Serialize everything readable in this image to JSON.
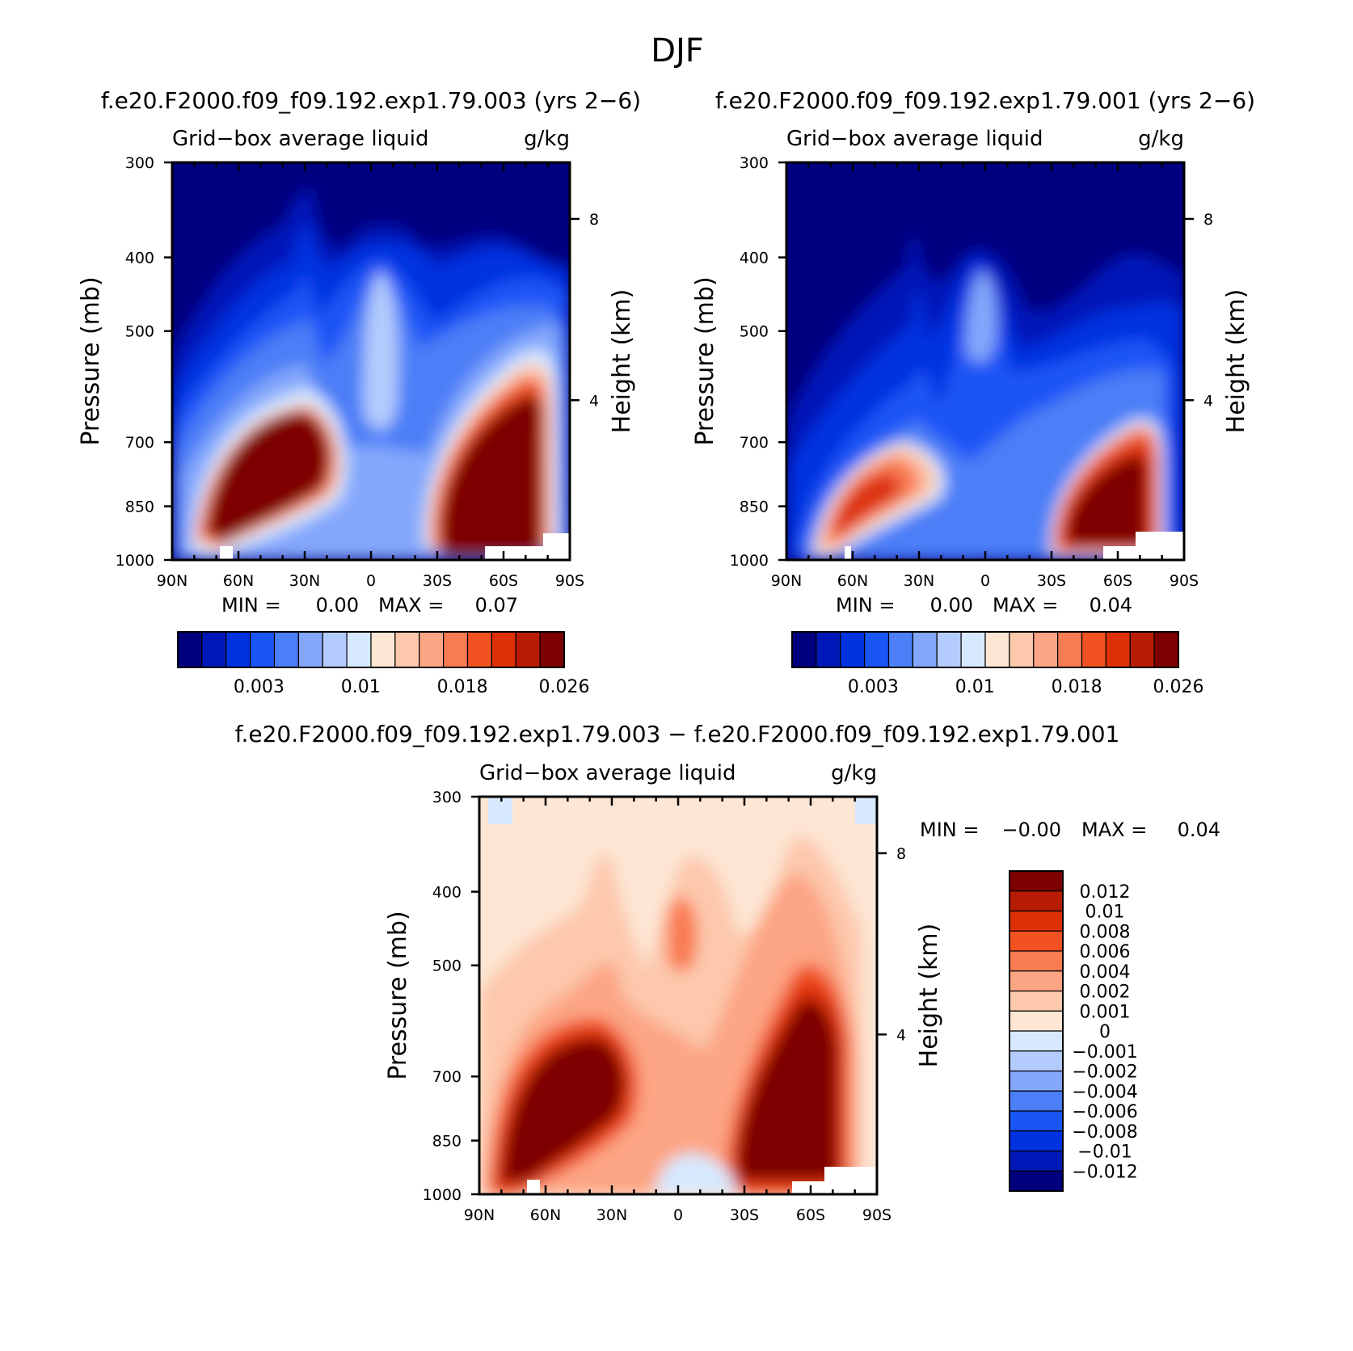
{
  "figure": {
    "title": "DJF"
  },
  "chart_data": [
    {
      "type": "heatmap",
      "title": "f.e20.F2000.f09_f09.192.exp1.79.003 (yrs 2−6)",
      "subtitle_left": "Grid−box average liquid",
      "subtitle_right": "g/kg",
      "xlabel": "",
      "ylabel": "Pressure (mb)",
      "y2label": "Height (km)",
      "x_ticks": [
        "90N",
        "60N",
        "30N",
        "0",
        "30S",
        "60S",
        "90S"
      ],
      "x_range": [
        90,
        -90
      ],
      "y_ticks": [
        300,
        400,
        500,
        700,
        850,
        1000
      ],
      "y_range": [
        300,
        1000
      ],
      "y2_ticks": [
        8,
        4
      ],
      "min_label": "MIN =",
      "min_value": "0.00",
      "max_label": "MAX =",
      "max_value": "0.07",
      "colorbar_orientation": "horizontal",
      "colorbar_ticks": [
        "0.003",
        "0.01",
        "0.018",
        "0.026"
      ],
      "colorbar_colors": [
        "#00007f",
        "#0018b8",
        "#0032e0",
        "#1a55f5",
        "#4b7ef7",
        "#84a7fb",
        "#b4ccfd",
        "#d7e9fe",
        "#fde6d4",
        "#fdc8ac",
        "#fca584",
        "#f97b52",
        "#f25221",
        "#dd3007",
        "#b81c04",
        "#7d0000"
      ],
      "features": [
        {
          "lat": 45,
          "p": 830,
          "value": 0.07
        },
        {
          "lat": -62,
          "p": 830,
          "value": 0.06
        },
        {
          "lat": 80,
          "p": 870,
          "value": 0.02
        },
        {
          "lat": 0,
          "p": 520,
          "value": 0.009
        },
        {
          "lat": 30,
          "p": 480,
          "value": 0.006
        }
      ]
    },
    {
      "type": "heatmap",
      "title": "f.e20.F2000.f09_f09.192.exp1.79.001 (yrs 2−6)",
      "subtitle_left": "Grid−box average liquid",
      "subtitle_right": "g/kg",
      "xlabel": "",
      "ylabel": "Pressure (mb)",
      "y2label": "Height (km)",
      "x_ticks": [
        "90N",
        "60N",
        "30N",
        "0",
        "30S",
        "60S",
        "90S"
      ],
      "x_range": [
        90,
        -90
      ],
      "y_ticks": [
        300,
        400,
        500,
        700,
        850,
        1000
      ],
      "y_range": [
        300,
        1000
      ],
      "y2_ticks": [
        8,
        4
      ],
      "min_label": "MIN =",
      "min_value": "0.00",
      "max_label": "MAX =",
      "max_value": "0.04",
      "colorbar_orientation": "horizontal",
      "colorbar_ticks": [
        "0.003",
        "0.01",
        "0.018",
        "0.026"
      ],
      "colorbar_colors": [
        "#00007f",
        "#0018b8",
        "#0032e0",
        "#1a55f5",
        "#4b7ef7",
        "#84a7fb",
        "#b4ccfd",
        "#d7e9fe",
        "#fde6d4",
        "#fdc8ac",
        "#fca584",
        "#f97b52",
        "#f25221",
        "#dd3007",
        "#b81c04",
        "#7d0000"
      ],
      "features": [
        {
          "lat": 52,
          "p": 860,
          "value": 0.025
        },
        {
          "lat": -62,
          "p": 870,
          "value": 0.04
        },
        {
          "lat": 0,
          "p": 540,
          "value": 0.009
        },
        {
          "lat": 30,
          "p": 550,
          "value": 0.005
        }
      ]
    },
    {
      "type": "heatmap",
      "title": "f.e20.F2000.f09_f09.192.exp1.79.003 − f.e20.F2000.f09_f09.192.exp1.79.001",
      "subtitle_left": "Grid−box average liquid",
      "subtitle_right": "g/kg",
      "xlabel": "",
      "ylabel": "Pressure (mb)",
      "y2label": "Height (km)",
      "x_ticks": [
        "90N",
        "60N",
        "30N",
        "0",
        "30S",
        "60S",
        "90S"
      ],
      "x_range": [
        90,
        -90
      ],
      "y_ticks": [
        300,
        400,
        500,
        700,
        850,
        1000
      ],
      "y_range": [
        300,
        1000
      ],
      "y2_ticks": [
        8,
        4
      ],
      "min_label": "MIN =",
      "min_value": "−0.00",
      "max_label": "MAX =",
      "max_value": "0.04",
      "colorbar_orientation": "vertical",
      "colorbar_labels": [
        "0.012",
        "0.01",
        "0.008",
        "0.006",
        "0.004",
        "0.002",
        "0.001",
        "0",
        "−0.001",
        "−0.002",
        "−0.004",
        "−0.006",
        "−0.008",
        "−0.01",
        "−0.012"
      ],
      "colorbar_colors": [
        "#7d0000",
        "#b81c04",
        "#dd3007",
        "#f25221",
        "#f97b52",
        "#fca584",
        "#fdc8ac",
        "#fde6d4",
        "#d7e9fe",
        "#b4ccfd",
        "#84a7fb",
        "#4b7ef7",
        "#1a55f5",
        "#0032e0",
        "#0018b8",
        "#00007f"
      ],
      "features": [
        {
          "lat": 45,
          "p": 830,
          "value": 0.03
        },
        {
          "lat": -62,
          "p": 820,
          "value": 0.03
        },
        {
          "lat": 0,
          "p": 560,
          "value": 0.005
        },
        {
          "lat": 0,
          "p": 960,
          "value": -0.001
        }
      ]
    }
  ]
}
